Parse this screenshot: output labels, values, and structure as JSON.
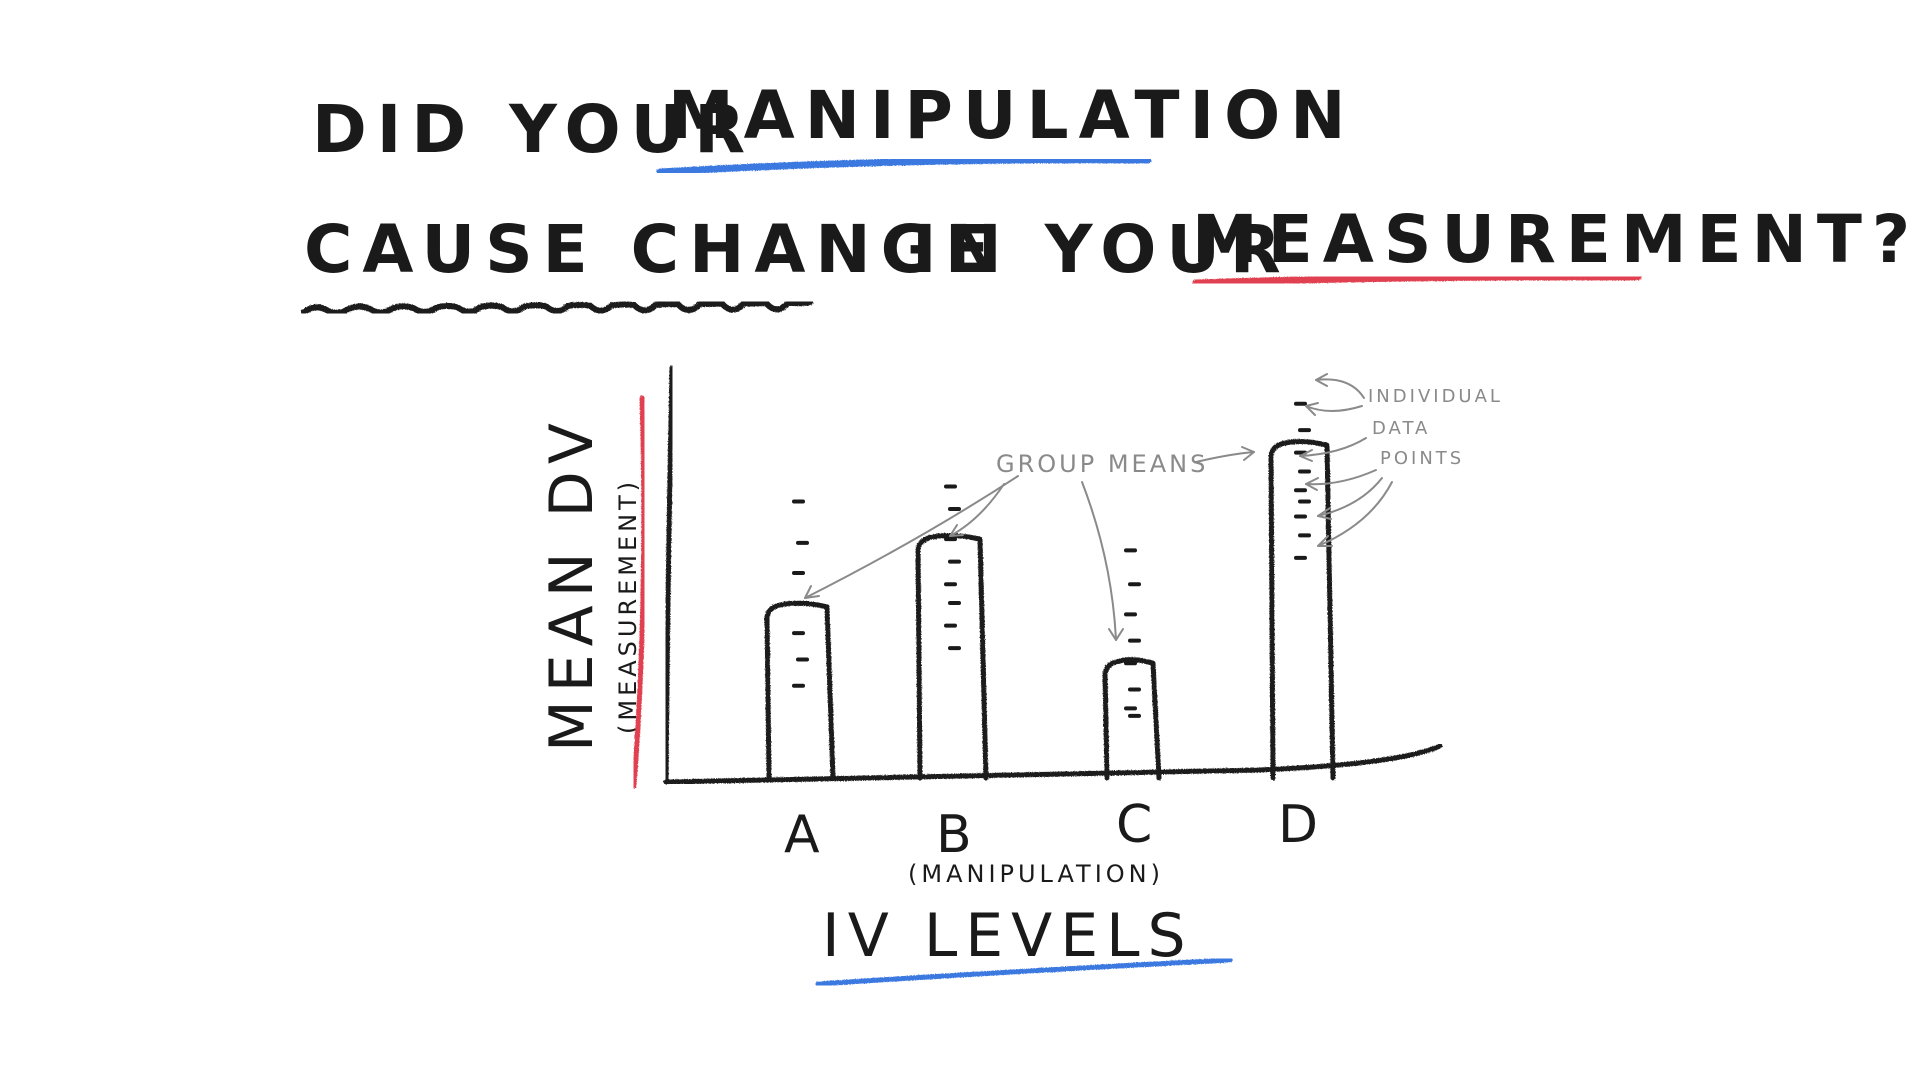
{
  "title": {
    "line1": {
      "part1": "DID YOUR",
      "part2": "MANIPULATION"
    },
    "line2": {
      "part1": "CAUSE CHANGE",
      "part2": "IN YOUR",
      "part3": "MEASUREMENT?"
    }
  },
  "colors": {
    "ink": "#1a1a1a",
    "blue_underline": "#3a78e0",
    "red_underline": "#e0414f",
    "annotation": "#8a8a8a"
  },
  "annotations": {
    "group_means": "GROUP MEANS",
    "individual_line1": "INDIVIDUAL",
    "individual_line2": "DATA",
    "individual_line3": "POINTS"
  },
  "chart_data": {
    "type": "bar",
    "categories": [
      "A",
      "B",
      "C",
      "D"
    ],
    "values": [
      45,
      63,
      30,
      88
    ],
    "ylim": [
      0,
      100
    ],
    "xlabel": "IV LEVELS",
    "xlabel_sub": "(MANIPULATION)",
    "ylabel": "MEAN DV",
    "ylabel_sub": "(MEASUREMENT)",
    "points": [
      [
        73,
        62,
        54,
        46,
        38,
        31,
        24
      ],
      [
        77,
        71,
        63,
        57,
        51,
        46,
        40,
        34
      ],
      [
        60,
        51,
        43,
        36,
        30,
        23,
        18,
        16
      ],
      [
        99,
        92,
        86,
        81,
        76,
        73,
        69,
        64,
        58
      ]
    ],
    "grid": false
  }
}
